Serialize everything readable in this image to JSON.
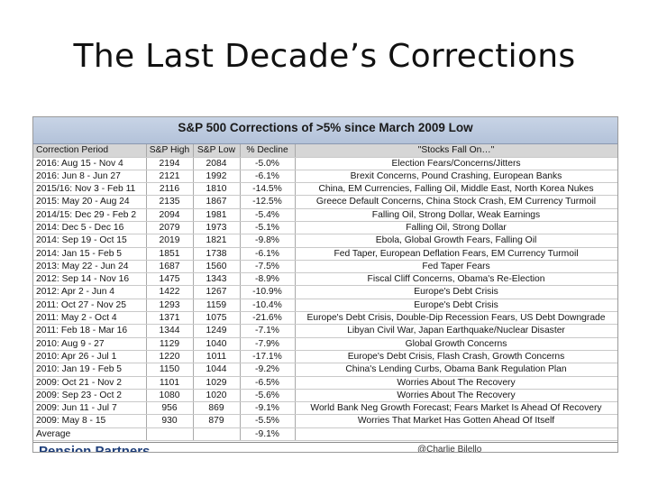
{
  "slide": {
    "title": "The Last Decade’s Corrections"
  },
  "table": {
    "banner": "S&P 500 Corrections of >5% since March 2009 Low",
    "headers": [
      "Correction Period",
      "S&P High",
      "S&P Low",
      "% Decline",
      "\"Stocks Fall On…\""
    ],
    "rows": [
      {
        "period": "2016: Aug 15 - Nov 4",
        "high": "2194",
        "low": "2084",
        "decline": "-5.0%",
        "reason": "Election Fears/Concerns/Jitters"
      },
      {
        "period": "2016: Jun 8 - Jun 27",
        "high": "2121",
        "low": "1992",
        "decline": "-6.1%",
        "reason": "Brexit Concerns, Pound Crashing, European Banks"
      },
      {
        "period": "2015/16: Nov 3 - Feb 11",
        "high": "2116",
        "low": "1810",
        "decline": "-14.5%",
        "reason": "China, EM Currencies, Falling Oil, Middle East, North Korea Nukes"
      },
      {
        "period": "2015: May 20 - Aug 24",
        "high": "2135",
        "low": "1867",
        "decline": "-12.5%",
        "reason": "Greece Default Concerns, China Stock Crash, EM Currency Turmoil"
      },
      {
        "period": "2014/15: Dec 29 - Feb 2",
        "high": "2094",
        "low": "1981",
        "decline": "-5.4%",
        "reason": "Falling Oil, Strong Dollar, Weak Earnings"
      },
      {
        "period": "2014: Dec 5 - Dec 16",
        "high": "2079",
        "low": "1973",
        "decline": "-5.1%",
        "reason": "Falling Oil, Strong Dollar"
      },
      {
        "period": "2014: Sep 19 - Oct 15",
        "high": "2019",
        "low": "1821",
        "decline": "-9.8%",
        "reason": "Ebola, Global Growth Fears, Falling Oil"
      },
      {
        "period": "2014: Jan 15 - Feb 5",
        "high": "1851",
        "low": "1738",
        "decline": "-6.1%",
        "reason": "Fed Taper, European Deflation Fears, EM Currency Turmoil"
      },
      {
        "period": "2013: May 22 - Jun 24",
        "high": "1687",
        "low": "1560",
        "decline": "-7.5%",
        "reason": "Fed Taper Fears"
      },
      {
        "period": "2012: Sep 14 - Nov 16",
        "high": "1475",
        "low": "1343",
        "decline": "-8.9%",
        "reason": "Fiscal Cliff Concerns, Obama's Re-Election"
      },
      {
        "period": "2012: Apr 2 - Jun 4",
        "high": "1422",
        "low": "1267",
        "decline": "-10.9%",
        "reason": "Europe's Debt Crisis"
      },
      {
        "period": "2011: Oct 27 - Nov 25",
        "high": "1293",
        "low": "1159",
        "decline": "-10.4%",
        "reason": "Europe's Debt Crisis"
      },
      {
        "period": "2011: May 2 - Oct 4",
        "high": "1371",
        "low": "1075",
        "decline": "-21.6%",
        "reason": "Europe's Debt Crisis, Double-Dip Recession Fears, US Debt Downgrade"
      },
      {
        "period": "2011: Feb 18 - Mar 16",
        "high": "1344",
        "low": "1249",
        "decline": "-7.1%",
        "reason": "Libyan Civil War, Japan Earthquake/Nuclear Disaster"
      },
      {
        "period": "2010: Aug 9 - 27",
        "high": "1129",
        "low": "1040",
        "decline": "-7.9%",
        "reason": "Global Growth Concerns"
      },
      {
        "period": "2010: Apr 26 - Jul 1",
        "high": "1220",
        "low": "1011",
        "decline": "-17.1%",
        "reason": "Europe's Debt Crisis, Flash Crash, Growth Concerns"
      },
      {
        "period": "2010: Jan 19 - Feb 5",
        "high": "1150",
        "low": "1044",
        "decline": "-9.2%",
        "reason": "China's Lending Curbs, Obama Bank Regulation Plan"
      },
      {
        "period": "2009: Oct 21 - Nov 2",
        "high": "1101",
        "low": "1029",
        "decline": "-6.5%",
        "reason": "Worries About The Recovery"
      },
      {
        "period": "2009: Sep 23 - Oct 2",
        "high": "1080",
        "low": "1020",
        "decline": "-5.6%",
        "reason": "Worries About The Recovery"
      },
      {
        "period": "2009: Jun 11 - Jul 7",
        "high": "956",
        "low": "869",
        "decline": "-9.1%",
        "reason": "World Bank Neg Growth Forecast; Fears Market Is Ahead Of Recovery"
      },
      {
        "period": "2009: May 8 - 15",
        "high": "930",
        "low": "879",
        "decline": "-5.5%",
        "reason": "Worries That Market Has Gotten Ahead Of Itself"
      }
    ],
    "average": {
      "label": "Average",
      "decline": "-9.1%"
    },
    "footer": {
      "logo_text": "Pension Partners",
      "right_text": "@Charlie Bilello"
    }
  }
}
